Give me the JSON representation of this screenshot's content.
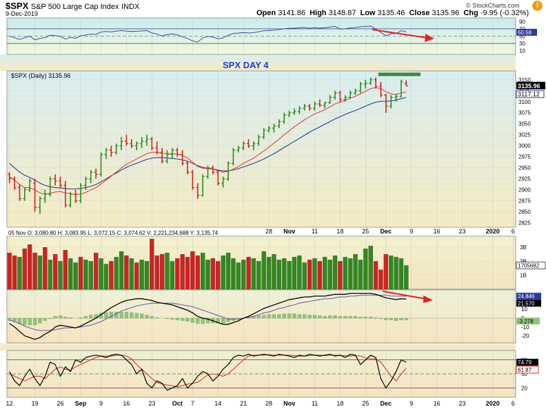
{
  "header": {
    "symbol": "$SPX",
    "name": "S&P 500 Large Cap Index",
    "exchange": "INDX",
    "date": "9-Dec-2019",
    "open_label": "Open",
    "open": "3141.86",
    "high_label": "High",
    "high": "3148.87",
    "low_label": "Low",
    "low": "3135.46",
    "close_label": "Close",
    "close": "3135.96",
    "chg_label": "Chg",
    "chg": "-9.95 (-0.32%)",
    "logo": "© StockCharts.com"
  },
  "colors": {
    "up": "#2e8b1e",
    "down": "#d42020",
    "ma_fast": "#e03030",
    "ma_slow": "#2a3a9a",
    "arrow": "#e82020",
    "resistance": "#3a8a3a",
    "annotation": "#1a3fd0"
  },
  "chart_data": [
    {
      "name": "rsi",
      "type": "line",
      "ticks": [
        "90",
        "70",
        "50",
        "30",
        "10"
      ],
      "value_label": "60.58",
      "ylim": [
        0,
        100
      ]
    },
    {
      "name": "price",
      "type": "ohlc",
      "legend": "$SPX (Daily) 3135.96",
      "annotation": "SPX DAY 4",
      "yticks": [
        "3150",
        "3125",
        "3100",
        "3075",
        "3050",
        "3025",
        "3000",
        "2975",
        "2950",
        "2925",
        "2900",
        "2875",
        "2850",
        "2825"
      ],
      "ylim": [
        2815,
        3170
      ],
      "last_close_label": "3135.96",
      "ma_label": "3117.12",
      "ohlc": [
        [
          2935,
          2940,
          2915,
          2925
        ],
        [
          2925,
          2930,
          2900,
          2905
        ],
        [
          2905,
          2912,
          2875,
          2880
        ],
        [
          2880,
          2905,
          2875,
          2900
        ],
        [
          2900,
          2925,
          2895,
          2920
        ],
        [
          2915,
          2925,
          2850,
          2860
        ],
        [
          2860,
          2885,
          2845,
          2880
        ],
        [
          2880,
          2900,
          2870,
          2890
        ],
        [
          2890,
          2930,
          2885,
          2925
        ],
        [
          2925,
          2935,
          2910,
          2920
        ],
        [
          2920,
          2930,
          2905,
          2910
        ],
        [
          2910,
          2920,
          2860,
          2865
        ],
        [
          2865,
          2895,
          2860,
          2890
        ],
        [
          2890,
          2900,
          2870,
          2875
        ],
        [
          2875,
          2915,
          2870,
          2910
        ],
        [
          2910,
          2930,
          2900,
          2925
        ],
        [
          2925,
          2945,
          2915,
          2940
        ],
        [
          2940,
          2948,
          2925,
          2935
        ],
        [
          2935,
          2985,
          2930,
          2980
        ],
        [
          2980,
          2995,
          2970,
          2990
        ],
        [
          2990,
          3000,
          2975,
          2985
        ],
        [
          2985,
          3005,
          2980,
          3000
        ],
        [
          3000,
          3020,
          2990,
          3010
        ],
        [
          3010,
          3025,
          3000,
          3005
        ],
        [
          3005,
          3015,
          2995,
          3000
        ],
        [
          3000,
          3010,
          2990,
          3005
        ],
        [
          3005,
          3020,
          2995,
          3010
        ],
        [
          3010,
          3025,
          3000,
          3015
        ],
        [
          3015,
          3020,
          2990,
          2995
        ],
        [
          2995,
          3010,
          2980,
          2985
        ],
        [
          2985,
          2995,
          2960,
          2965
        ],
        [
          2965,
          2990,
          2960,
          2980
        ],
        [
          2980,
          2995,
          2970,
          2990
        ],
        [
          2990,
          2995,
          2975,
          2980
        ],
        [
          2980,
          2990,
          2955,
          2960
        ],
        [
          2960,
          2965,
          2935,
          2940
        ],
        [
          2940,
          2945,
          2900,
          2905
        ],
        [
          2905,
          2915,
          2880,
          2887
        ],
        [
          2887,
          2935,
          2885,
          2930
        ],
        [
          2930,
          2955,
          2925,
          2950
        ],
        [
          2950,
          2955,
          2935,
          2940
        ],
        [
          2940,
          2945,
          2910,
          2915
        ],
        [
          2915,
          2930,
          2905,
          2925
        ],
        [
          2925,
          2965,
          2920,
          2960
        ],
        [
          2960,
          2995,
          2955,
          2990
        ],
        [
          2990,
          3000,
          2985,
          2995
        ],
        [
          2995,
          3010,
          2990,
          3005
        ],
        [
          3005,
          3015,
          2995,
          3000
        ],
        [
          3000,
          3010,
          2990,
          3005
        ],
        [
          3005,
          3025,
          3000,
          3020
        ],
        [
          3020,
          3040,
          3015,
          3035
        ],
        [
          3035,
          3045,
          3030,
          3040
        ],
        [
          3040,
          3050,
          3030,
          3045
        ],
        [
          3045,
          3060,
          3040,
          3055
        ],
        [
          3055,
          3075,
          3050,
          3070
        ],
        [
          3070,
          3080,
          3065,
          3075
        ],
        [
          3075,
          3085,
          3070,
          3078
        ],
        [
          3078,
          3090,
          3072,
          3085
        ],
        [
          3085,
          3095,
          3080,
          3090
        ],
        [
          3090,
          3095,
          3080,
          3085
        ],
        [
          3085,
          3100,
          3080,
          3095
        ],
        [
          3095,
          3105,
          3088,
          3092
        ],
        [
          3092,
          3100,
          3085,
          3098
        ],
        [
          3098,
          3115,
          3095,
          3110
        ],
        [
          3110,
          3125,
          3105,
          3120
        ],
        [
          3120,
          3125,
          3100,
          3105
        ],
        [
          3105,
          3115,
          3100,
          3110
        ],
        [
          3110,
          3125,
          3108,
          3120
        ],
        [
          3120,
          3130,
          3115,
          3125
        ],
        [
          3125,
          3145,
          3120,
          3140
        ],
        [
          3140,
          3150,
          3130,
          3142
        ],
        [
          3142,
          3155,
          3138,
          3150
        ],
        [
          3150,
          3155,
          3130,
          3135
        ],
        [
          3135,
          3145,
          3110,
          3115
        ],
        [
          3115,
          3118,
          3075,
          3090
        ],
        [
          3090,
          3115,
          3085,
          3110
        ],
        [
          3110,
          3118,
          3100,
          3112
        ],
        [
          3112,
          3150,
          3110,
          3145
        ],
        [
          3141.86,
          3148.87,
          3135.46,
          3135.96
        ]
      ],
      "ma_fast": [
        2930,
        2922,
        2912,
        2905,
        2905,
        2900,
        2893,
        2890,
        2892,
        2895,
        2896,
        2893,
        2891,
        2889,
        2890,
        2894,
        2900,
        2905,
        2913,
        2922,
        2931,
        2940,
        2950,
        2958,
        2964,
        2970,
        2976,
        2982,
        2985,
        2985,
        2983,
        2982,
        2982,
        2981,
        2978,
        2972,
        2963,
        2953,
        2949,
        2948,
        2947,
        2943,
        2940,
        2942,
        2947,
        2953,
        2960,
        2966,
        2972,
        2980,
        2988,
        2997,
        3006,
        3015,
        3025,
        3034,
        3043,
        3051,
        3059,
        3066,
        3072,
        3077,
        3082,
        3088,
        3095,
        3099,
        3103,
        3108,
        3112,
        3118,
        3124,
        3130,
        3132,
        3130,
        3123,
        3118,
        3116,
        3120,
        3122
      ],
      "ma_slow": [
        2960,
        2950,
        2940,
        2933,
        2928,
        2922,
        2915,
        2910,
        2907,
        2905,
        2904,
        2903,
        2902,
        2902,
        2903,
        2905,
        2908,
        2912,
        2918,
        2925,
        2932,
        2938,
        2945,
        2951,
        2956,
        2960,
        2965,
        2969,
        2972,
        2973,
        2973,
        2972,
        2971,
        2970,
        2968,
        2965,
        2960,
        2955,
        2951,
        2949,
        2947,
        2945,
        2943,
        2943,
        2945,
        2948,
        2952,
        2956,
        2960,
        2965,
        2970,
        2976,
        2982,
        2989,
        2996,
        3003,
        3010,
        3017,
        3024,
        3031,
        3037,
        3043,
        3049,
        3055,
        3061,
        3066,
        3071,
        3076,
        3080,
        3085,
        3090,
        3095,
        3099,
        3101,
        3101,
        3102,
        3104,
        3107,
        3110
      ]
    },
    {
      "name": "volume",
      "type": "bar",
      "legend": "05 Nov O: 3,080.80  H: 3,083.95  L: 3,072.15  C: 3,074.62  V: 2,221,234,688  Y: 3,135.74",
      "yticks": [
        "3B",
        "2B",
        "1B"
      ],
      "value_label": "1705682",
      "values": [
        2.6,
        2.4,
        2.3,
        2.9,
        3.2,
        2.6,
        2.4,
        3.0,
        2.1,
        2.5,
        2.0,
        2.8,
        2.2,
        1.9,
        2.3,
        2.1,
        2.0,
        2.6,
        2.2,
        1.8,
        2.0,
        2.3,
        2.7,
        2.4,
        2.2,
        1.9,
        2.1,
        2.0,
        3.6,
        2.4,
        2.5,
        2.6,
        2.0,
        2.2,
        2.5,
        2.3,
        2.7,
        2.4,
        2.6,
        2.1,
        2.2,
        2.0,
        2.4,
        2.6,
        2.2,
        1.9,
        2.1,
        2.3,
        2.2,
        2.0,
        2.7,
        2.3,
        2.5,
        2.1,
        2.2,
        2.0,
        2.3,
        2.4,
        1.9,
        2.1,
        2.2,
        2.0,
        2.3,
        2.1,
        2.4,
        2.0,
        2.3,
        2.2,
        2.5,
        2.1,
        2.9,
        3.1,
        2.0,
        1.4,
        2.5,
        2.4,
        2.3,
        2.2,
        1.7
      ],
      "up": [
        0,
        0,
        1,
        0,
        0,
        0,
        1,
        0,
        1,
        0,
        1,
        0,
        1,
        1,
        0,
        1,
        1,
        0,
        1,
        1,
        0,
        1,
        1,
        0,
        1,
        0,
        1,
        1,
        0,
        0,
        0,
        1,
        1,
        0,
        0,
        0,
        0,
        0,
        1,
        1,
        0,
        0,
        1,
        1,
        1,
        1,
        1,
        0,
        1,
        1,
        1,
        1,
        1,
        1,
        1,
        1,
        1,
        1,
        1,
        0,
        1,
        0,
        1,
        1,
        1,
        0,
        1,
        1,
        1,
        1,
        1,
        1,
        0,
        0,
        0,
        1,
        1,
        1,
        1
      ]
    },
    {
      "name": "macd",
      "type": "line",
      "yticks": [
        "10",
        "0",
        "-10",
        "-20"
      ],
      "macd_label": "21.570",
      "signal_label": "24.846",
      "hist_label": "-3.278",
      "ylim": [
        -28,
        32
      ],
      "macd": [
        -6,
        -10,
        -15,
        -20,
        -22,
        -24,
        -22,
        -18,
        -15,
        -10,
        -8,
        -9,
        -10,
        -11,
        -9,
        -6,
        -3,
        0,
        4,
        8,
        12,
        15,
        18,
        20,
        21,
        22,
        22,
        21,
        20,
        18,
        17,
        16,
        15,
        13,
        11,
        9,
        6,
        2,
        0,
        -1,
        -3,
        -5,
        -7,
        -7,
        -5,
        -3,
        0,
        2,
        5,
        8,
        11,
        13,
        15,
        17,
        19,
        21,
        22,
        23,
        24,
        24,
        25,
        25,
        25,
        26,
        27,
        27,
        27,
        28,
        28,
        28,
        28,
        28,
        27,
        25,
        23,
        22,
        21,
        22,
        21.6
      ],
      "signal": [
        -2,
        -4,
        -6,
        -9,
        -11,
        -13,
        -14,
        -14,
        -14,
        -13,
        -12,
        -11,
        -11,
        -11,
        -10,
        -9,
        -8,
        -6,
        -4,
        -1,
        2,
        5,
        8,
        10,
        12,
        14,
        15,
        16,
        17,
        17,
        17,
        17,
        17,
        16,
        15,
        14,
        13,
        11,
        9,
        7,
        5,
        3,
        1,
        -1,
        -1,
        -1,
        0,
        1,
        2,
        4,
        6,
        7,
        9,
        11,
        12,
        14,
        15,
        17,
        18,
        19,
        20,
        21,
        22,
        22,
        23,
        24,
        24,
        25,
        25,
        26,
        26,
        26,
        26,
        26,
        26,
        25,
        25,
        25,
        24.8
      ]
    },
    {
      "name": "stochastic",
      "type": "line",
      "yticks": [
        "80",
        "50",
        "20"
      ],
      "k_label": "74.79",
      "d_label": "61.87",
      "ylim": [
        0,
        100
      ],
      "k": [
        55,
        35,
        25,
        45,
        60,
        40,
        25,
        45,
        75,
        70,
        45,
        65,
        55,
        80,
        75,
        85,
        88,
        90,
        88,
        85,
        90,
        92,
        90,
        80,
        70,
        50,
        60,
        30,
        20,
        35,
        30,
        15,
        20,
        25,
        40,
        20,
        30,
        45,
        55,
        50,
        35,
        45,
        60,
        70,
        85,
        90,
        88,
        92,
        88,
        90,
        92,
        90,
        88,
        92,
        90,
        88,
        85,
        90,
        88,
        92,
        90,
        88,
        90,
        92,
        88,
        90,
        85,
        92,
        90,
        70,
        80,
        90,
        85,
        40,
        20,
        35,
        55,
        80,
        75
      ],
      "d": [
        50,
        45,
        40,
        35,
        40,
        45,
        45,
        40,
        50,
        60,
        65,
        60,
        58,
        65,
        70,
        75,
        80,
        85,
        88,
        88,
        88,
        90,
        90,
        88,
        82,
        70,
        60,
        50,
        40,
        32,
        28,
        26,
        25,
        22,
        25,
        28,
        30,
        32,
        40,
        48,
        50,
        48,
        45,
        50,
        60,
        70,
        80,
        88,
        90,
        90,
        90,
        91,
        90,
        90,
        90,
        90,
        89,
        88,
        88,
        89,
        90,
        90,
        89,
        90,
        90,
        89,
        89,
        88,
        89,
        88,
        84,
        82,
        82,
        75,
        60,
        45,
        35,
        50,
        62
      ]
    }
  ],
  "x_axis": {
    "labels": [
      {
        "t": "12",
        "i": 0
      },
      {
        "t": "19",
        "i": 5
      },
      {
        "t": "26",
        "i": 10
      },
      {
        "t": "Sep",
        "i": 14
      },
      {
        "t": "9",
        "i": 18
      },
      {
        "t": "16",
        "i": 23
      },
      {
        "t": "23",
        "i": 28
      },
      {
        "t": "Oct",
        "i": 33
      },
      {
        "t": "7",
        "i": 36
      },
      {
        "t": "14",
        "i": 41
      },
      {
        "t": "21",
        "i": 46
      },
      {
        "t": "28",
        "i": 51
      },
      {
        "t": "Nov",
        "i": 55
      },
      {
        "t": "11",
        "i": 60
      },
      {
        "t": "18",
        "i": 65
      },
      {
        "t": "25",
        "i": 70
      },
      {
        "t": "Dec",
        "i": 74
      },
      {
        "t": "9",
        "i": 79
      },
      {
        "t": "16",
        "i": 84
      },
      {
        "t": "23",
        "i": 89
      },
      {
        "t": "2020",
        "i": 95
      },
      {
        "t": "6",
        "i": 99
      }
    ]
  }
}
